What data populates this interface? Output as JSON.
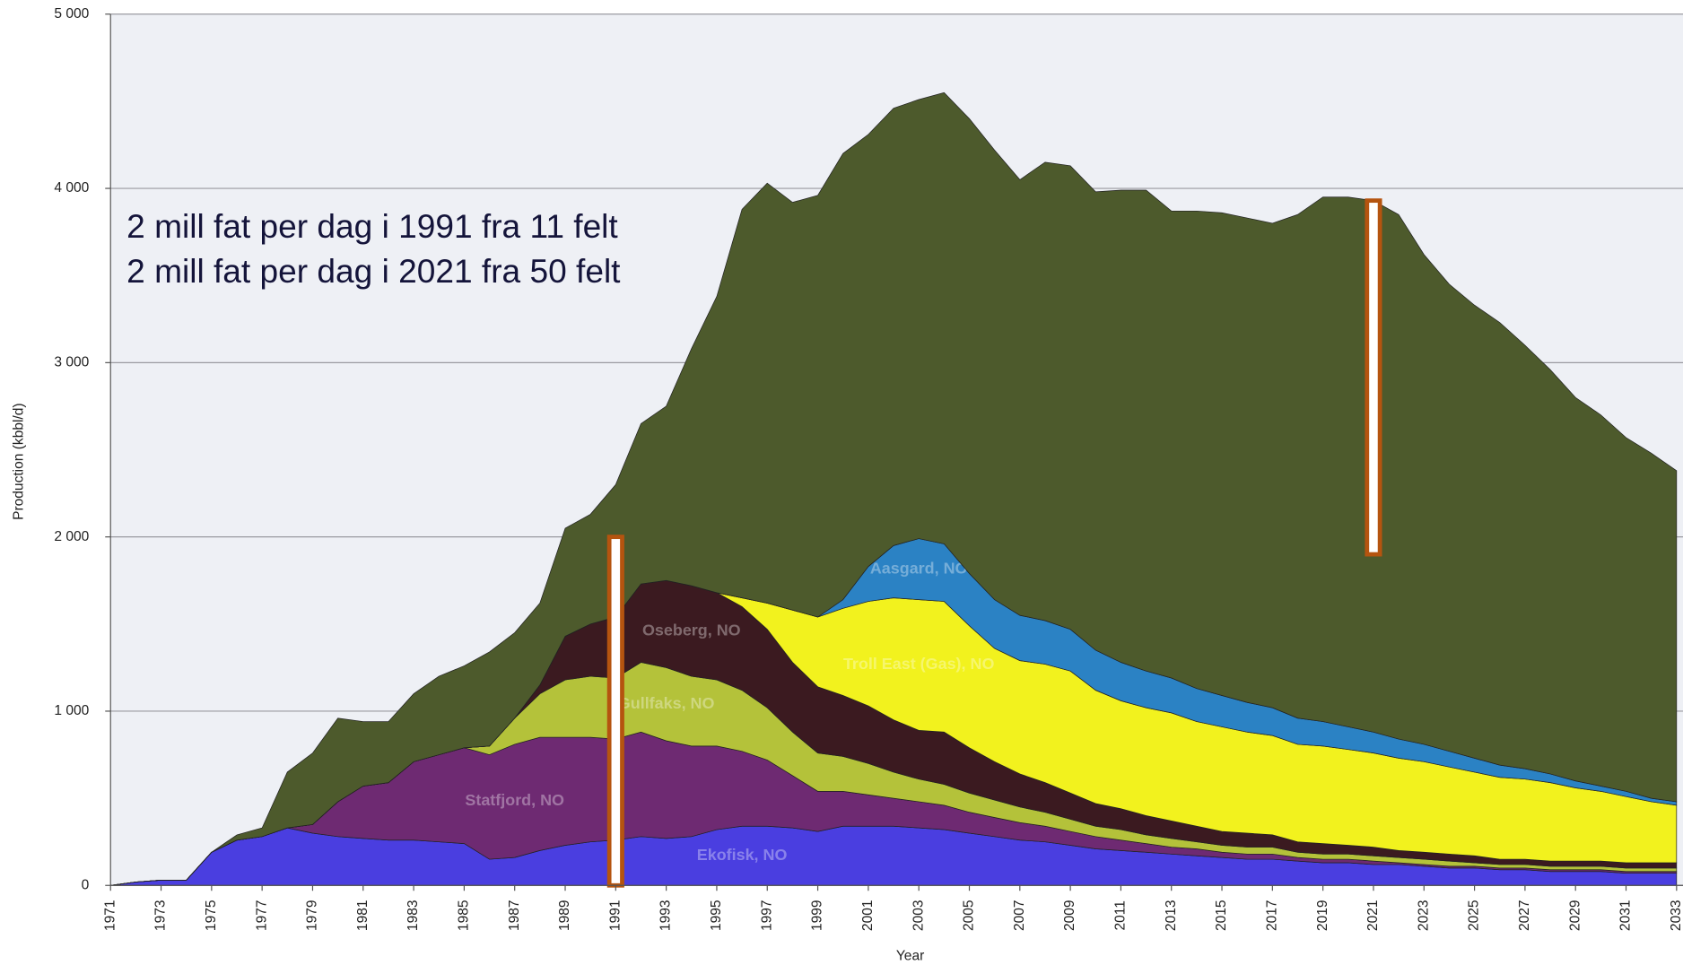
{
  "chart_data": {
    "type": "stacked_area",
    "xlabel": "Year",
    "ylabel": "Production (kbbl/d)",
    "annotations": [
      "2 mill fat per dag i 1991 fra 11 felt",
      "2 mill fat per dag i 2021 fra 50 felt"
    ],
    "highlights": [
      {
        "x": 1991,
        "from": 0,
        "to": 2000
      },
      {
        "x": 2021,
        "from": 1900,
        "to": 3930
      }
    ],
    "highlight_color": "#b5540f",
    "xlim": [
      1971,
      2033
    ],
    "ylim": [
      0,
      5000
    ],
    "xticks": [
      1971,
      1973,
      1975,
      1977,
      1979,
      1981,
      1983,
      1985,
      1987,
      1989,
      1991,
      1993,
      1995,
      1997,
      1999,
      2001,
      2003,
      2005,
      2007,
      2009,
      2011,
      2013,
      2015,
      2017,
      2019,
      2021,
      2023,
      2025,
      2027,
      2029,
      2031,
      2033
    ],
    "yticks": [
      0,
      {
        "value": 1000,
        "label": "1 000"
      },
      {
        "value": 2000,
        "label": "2 000"
      },
      {
        "value": 3000,
        "label": "3 000"
      },
      {
        "value": 4000,
        "label": "4 000"
      },
      {
        "value": 5000,
        "label": "5 000"
      }
    ],
    "grid": true,
    "x": [
      1971,
      1972,
      1973,
      1974,
      1975,
      1976,
      1977,
      1978,
      1979,
      1980,
      1981,
      1982,
      1983,
      1984,
      1985,
      1986,
      1987,
      1988,
      1989,
      1990,
      1991,
      1992,
      1993,
      1994,
      1995,
      1996,
      1997,
      1998,
      1999,
      2000,
      2001,
      2002,
      2003,
      2004,
      2005,
      2006,
      2007,
      2008,
      2009,
      2010,
      2011,
      2012,
      2013,
      2014,
      2015,
      2016,
      2017,
      2018,
      2019,
      2020,
      2021,
      2022,
      2023,
      2024,
      2025,
      2026,
      2027,
      2028,
      2029,
      2030,
      2031,
      2032,
      2033
    ],
    "series": [
      {
        "name": "Ekofisk, NO",
        "color": "#4a3ee0",
        "values": [
          0,
          20,
          30,
          30,
          190,
          260,
          280,
          330,
          300,
          280,
          270,
          260,
          260,
          250,
          240,
          150,
          160,
          200,
          230,
          250,
          260,
          280,
          270,
          280,
          320,
          340,
          340,
          330,
          310,
          340,
          340,
          340,
          330,
          320,
          300,
          280,
          260,
          250,
          230,
          210,
          200,
          190,
          180,
          170,
          160,
          150,
          150,
          140,
          130,
          130,
          120,
          120,
          110,
          100,
          100,
          90,
          90,
          80,
          80,
          80,
          70,
          70,
          70
        ]
      },
      {
        "name": "Statfjord, NO",
        "color": "#6e2a72",
        "values": [
          0,
          0,
          0,
          0,
          0,
          0,
          0,
          0,
          50,
          200,
          300,
          330,
          450,
          500,
          550,
          600,
          650,
          650,
          620,
          600,
          580,
          600,
          560,
          520,
          480,
          430,
          380,
          300,
          230,
          200,
          180,
          160,
          150,
          140,
          120,
          110,
          100,
          90,
          80,
          70,
          60,
          50,
          40,
          40,
          30,
          30,
          30,
          20,
          20,
          20,
          20,
          10,
          10,
          10,
          10,
          10,
          10,
          10,
          10,
          10,
          10,
          10,
          10
        ]
      },
      {
        "name": "Gullfaks, NO",
        "color": "#b4c23a",
        "values": [
          0,
          0,
          0,
          0,
          0,
          0,
          0,
          0,
          0,
          0,
          0,
          0,
          0,
          0,
          0,
          50,
          150,
          250,
          330,
          350,
          350,
          400,
          420,
          400,
          380,
          350,
          300,
          250,
          220,
          200,
          180,
          150,
          130,
          120,
          110,
          100,
          90,
          80,
          70,
          60,
          60,
          50,
          50,
          40,
          40,
          40,
          40,
          30,
          30,
          30,
          30,
          30,
          30,
          30,
          20,
          20,
          20,
          20,
          20,
          20,
          20,
          20,
          20
        ]
      },
      {
        "name": "Oseberg, NO",
        "color": "#3b1a20",
        "values": [
          0,
          0,
          0,
          0,
          0,
          0,
          0,
          0,
          0,
          0,
          0,
          0,
          0,
          0,
          0,
          0,
          0,
          50,
          250,
          300,
          350,
          450,
          500,
          520,
          500,
          480,
          450,
          400,
          380,
          350,
          330,
          300,
          280,
          300,
          260,
          220,
          190,
          170,
          150,
          130,
          120,
          110,
          100,
          90,
          80,
          80,
          70,
          60,
          60,
          50,
          50,
          40,
          40,
          40,
          40,
          30,
          30,
          30,
          30,
          30,
          30,
          30,
          30
        ]
      },
      {
        "name": "Troll East (Gas), NO",
        "color": "#f2f21e",
        "values": [
          0,
          0,
          0,
          0,
          0,
          0,
          0,
          0,
          0,
          0,
          0,
          0,
          0,
          0,
          0,
          0,
          0,
          0,
          0,
          0,
          0,
          0,
          0,
          0,
          0,
          50,
          150,
          300,
          400,
          500,
          600,
          700,
          750,
          750,
          700,
          650,
          650,
          680,
          700,
          650,
          620,
          620,
          620,
          600,
          600,
          580,
          570,
          560,
          560,
          550,
          540,
          530,
          520,
          500,
          480,
          470,
          460,
          450,
          420,
          400,
          380,
          350,
          330
        ]
      },
      {
        "name": "Aasgard, NO",
        "color": "#2b82c4",
        "values": [
          0,
          0,
          0,
          0,
          0,
          0,
          0,
          0,
          0,
          0,
          0,
          0,
          0,
          0,
          0,
          0,
          0,
          0,
          0,
          0,
          0,
          0,
          0,
          0,
          0,
          0,
          0,
          0,
          0,
          50,
          200,
          300,
          350,
          330,
          300,
          280,
          260,
          250,
          240,
          230,
          220,
          210,
          200,
          190,
          180,
          170,
          160,
          150,
          140,
          130,
          120,
          110,
          100,
          90,
          80,
          70,
          60,
          50,
          40,
          30,
          30,
          20,
          20
        ]
      },
      {
        "color": "#4d5a2c",
        "values": [
          0,
          0,
          0,
          0,
          0,
          30,
          50,
          320,
          410,
          480,
          370,
          350,
          390,
          450,
          470,
          540,
          490,
          470,
          620,
          630,
          760,
          920,
          1000,
          1360,
          1700,
          2230,
          2410,
          2340,
          2420,
          2560,
          2480,
          2510,
          2520,
          2590,
          2610,
          2580,
          2500,
          2630,
          2660,
          2630,
          2710,
          2760,
          2680,
          2740,
          2770,
          2780,
          2780,
          2890,
          3010,
          3040,
          3050,
          3010,
          2810,
          2680,
          2600,
          2540,
          2430,
          2320,
          2200,
          2130,
          2030,
          1980,
          1900
        ]
      }
    ]
  }
}
